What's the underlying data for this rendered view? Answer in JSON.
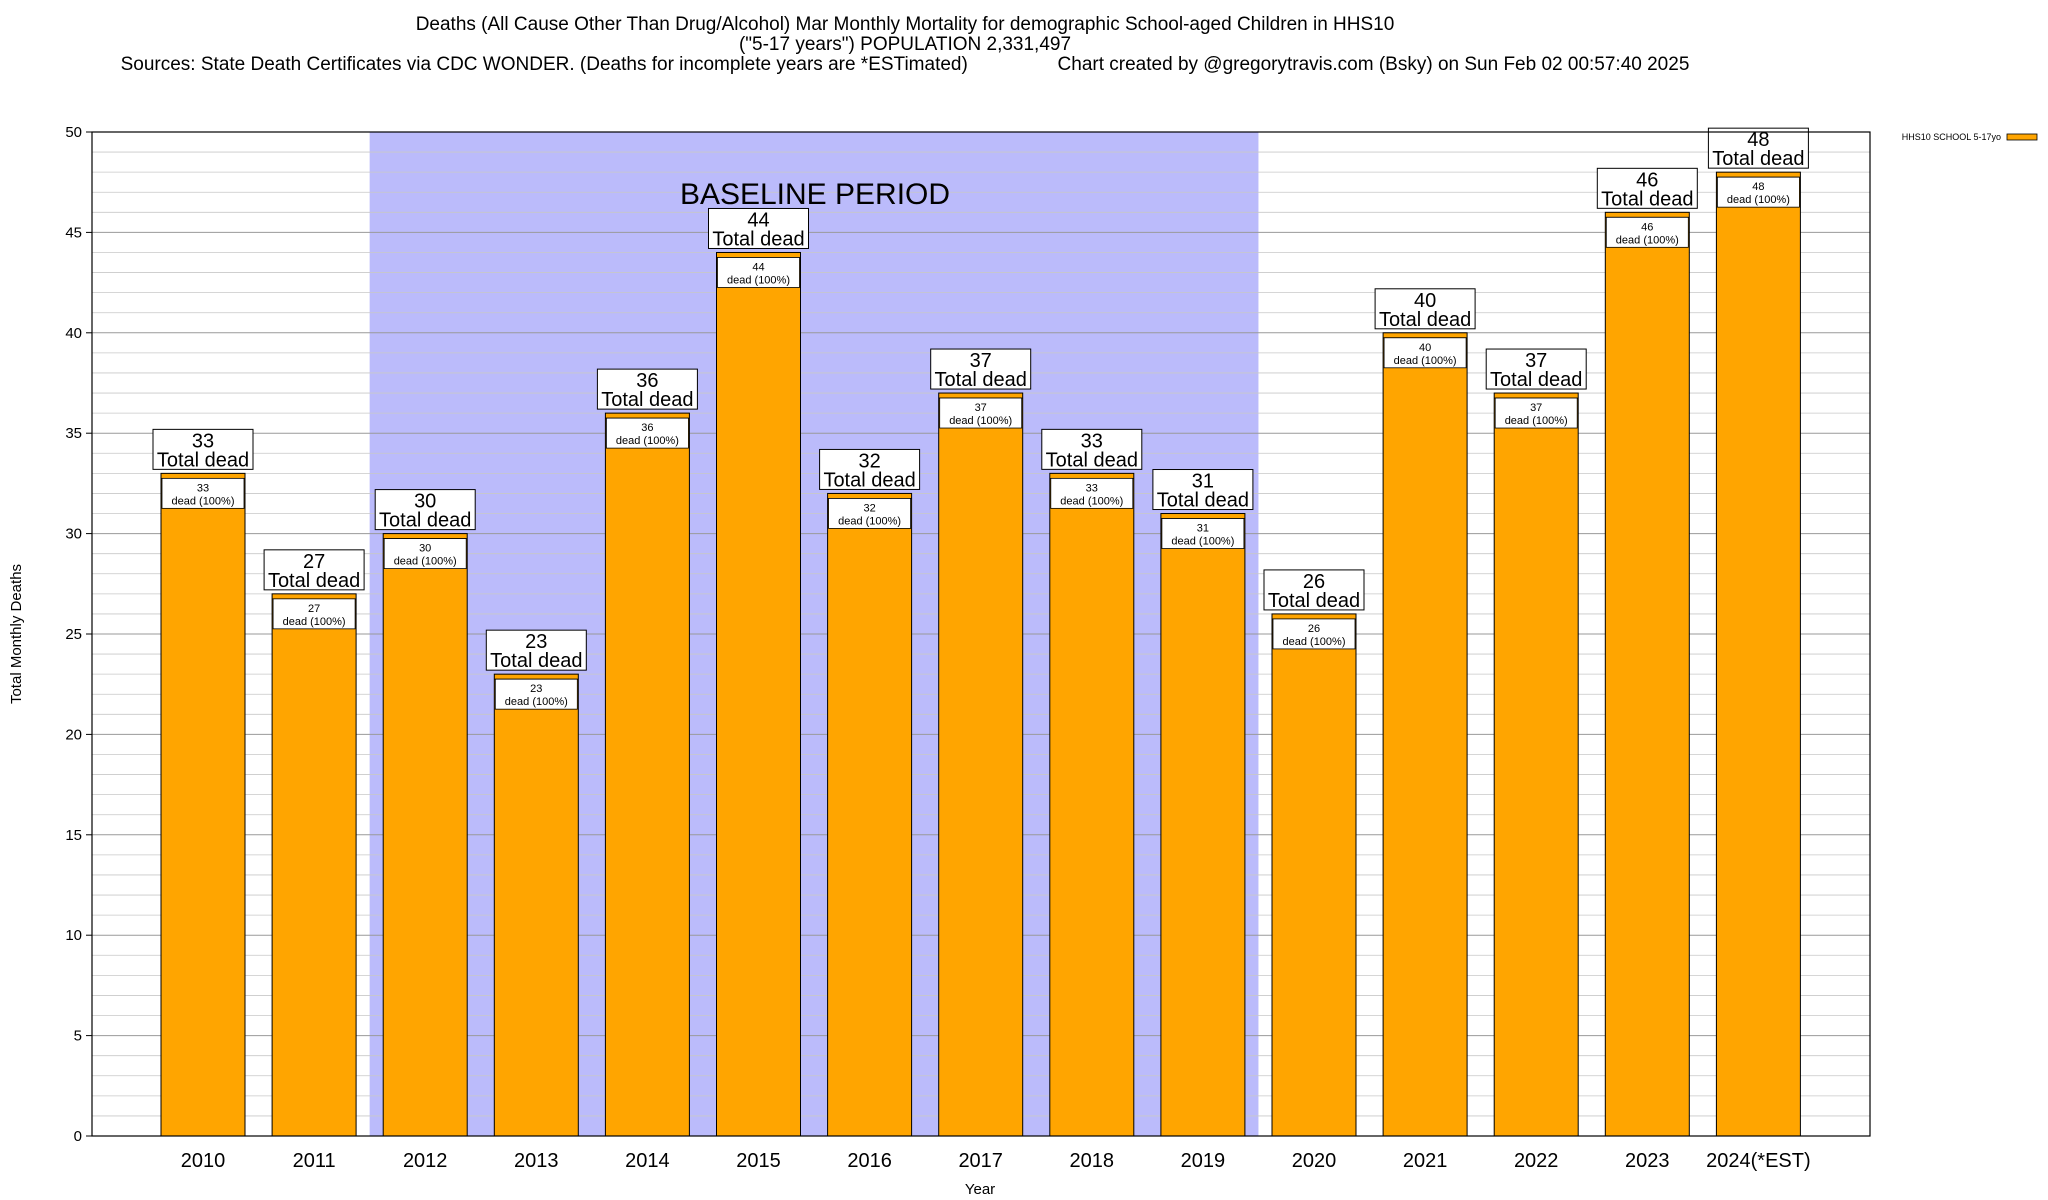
{
  "header": {
    "title_line1": "Deaths (All Cause Other Than Drug/Alcohol) Mar Monthly Mortality for demographic School-aged Children in HHS10",
    "title_line2": "(\"5-17 years\") POPULATION 2,331,497",
    "title_line3": "Sources: State Death Certificates via CDC WONDER. (Deaths for incomplete years are *ESTimated)                 Chart created by @gregorytravis.com (Bsky) on Sun Feb 02 00:57:40 2025"
  },
  "chart_data": {
    "type": "bar",
    "categories": [
      "2010",
      "2011",
      "2012",
      "2013",
      "2014",
      "2015",
      "2016",
      "2017",
      "2018",
      "2019",
      "2020",
      "2021",
      "2022",
      "2023",
      "2024(*EST)"
    ],
    "series": [
      {
        "name": "HHS10 SCHOOL 5-17yo",
        "values": [
          33,
          27,
          30,
          23,
          36,
          44,
          32,
          37,
          33,
          31,
          26,
          40,
          37,
          46,
          48
        ]
      }
    ],
    "top_label_suffix": "Total dead",
    "inner_label_suffix": "dead (100%)",
    "xlabel": "Year",
    "ylabel": "Total Monthly Deaths",
    "ylim": [
      0,
      50
    ],
    "yticks": [
      0,
      5,
      10,
      15,
      20,
      25,
      30,
      35,
      40,
      45,
      50
    ],
    "grid": true,
    "legend_position": "top-right",
    "baseline_period": {
      "label": "BASELINE PERIOD",
      "from": "2012",
      "to": "2019"
    },
    "colors": {
      "bar": "#ffa500",
      "bar_edge": "#000000",
      "baseline_shade": "#bbbbfb",
      "grid": "#c8c8c8"
    }
  }
}
